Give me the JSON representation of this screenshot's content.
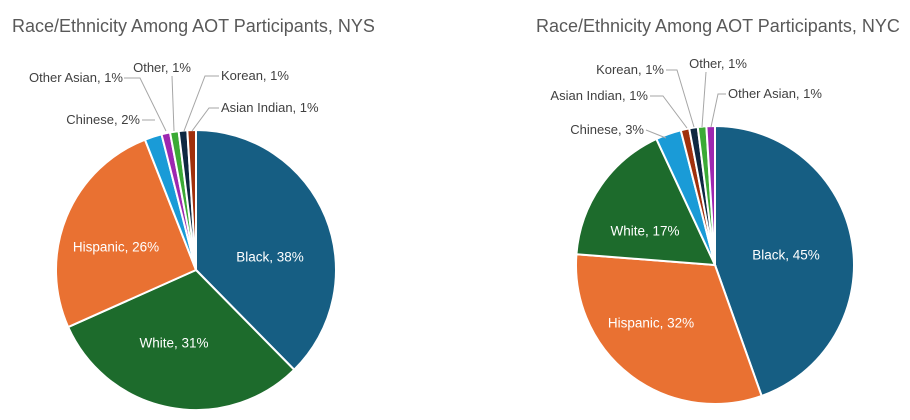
{
  "chart_data": [
    {
      "type": "pie",
      "title": "Race/Ethnicity Among AOT Participants, NYS",
      "slices": [
        {
          "label": "Black",
          "value": 38,
          "color": "#165E83"
        },
        {
          "label": "White",
          "value": 31,
          "color": "#1D6B2C"
        },
        {
          "label": "Hispanic",
          "value": 26,
          "color": "#E97132"
        },
        {
          "label": "Chinese",
          "value": 2,
          "color": "#1A9BD7"
        },
        {
          "label": "Other Asian",
          "value": 1,
          "color": "#9D27B0"
        },
        {
          "label": "Other",
          "value": 1,
          "color": "#3BAA35"
        },
        {
          "label": "Korean",
          "value": 1,
          "color": "#0E2841"
        },
        {
          "label": "Asian Indian",
          "value": 1,
          "color": "#A0300C"
        }
      ]
    },
    {
      "type": "pie",
      "title": "Race/Ethnicity Among AOT Participants, NYC",
      "slices": [
        {
          "label": "Black",
          "value": 45,
          "color": "#165E83"
        },
        {
          "label": "Hispanic",
          "value": 32,
          "color": "#E97132"
        },
        {
          "label": "White",
          "value": 17,
          "color": "#1D6B2C"
        },
        {
          "label": "Chinese",
          "value": 3,
          "color": "#1A9BD7"
        },
        {
          "label": "Asian Indian",
          "value": 1,
          "color": "#A0300C"
        },
        {
          "label": "Korean",
          "value": 1,
          "color": "#0E2841"
        },
        {
          "label": "Other",
          "value": 1,
          "color": "#3BAA35"
        },
        {
          "label": "Other Asian",
          "value": 1,
          "color": "#9D27B0"
        }
      ]
    }
  ]
}
